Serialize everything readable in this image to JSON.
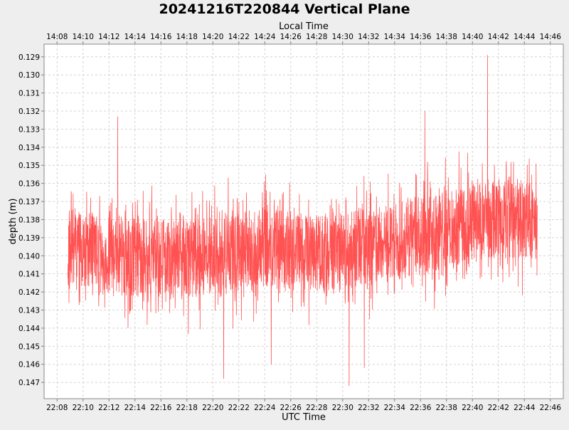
{
  "chart_data": {
    "type": "line",
    "title": "20241216T220844 Vertical Plane",
    "top_axis": {
      "label": "Local Time",
      "ticks": [
        "14:08",
        "14:10",
        "14:12",
        "14:14",
        "14:16",
        "14:18",
        "14:20",
        "14:22",
        "14:24",
        "14:26",
        "14:28",
        "14:30",
        "14:32",
        "14:34",
        "14:36",
        "14:38",
        "14:40",
        "14:42",
        "14:44",
        "14:46"
      ]
    },
    "xlabel": "UTC Time",
    "x_ticks": [
      "22:08",
      "22:10",
      "22:12",
      "22:14",
      "22:16",
      "22:18",
      "22:20",
      "22:22",
      "22:24",
      "22:26",
      "22:28",
      "22:30",
      "22:32",
      "22:34",
      "22:36",
      "22:38",
      "22:40",
      "22:42",
      "22:44",
      "22:46"
    ],
    "xlim": [
      "22:07:00",
      "22:47:00"
    ],
    "ylabel": "depth (m)",
    "y_ticks": [
      "0.129",
      "0.130",
      "0.131",
      "0.132",
      "0.133",
      "0.134",
      "0.135",
      "0.136",
      "0.137",
      "0.138",
      "0.139",
      "0.140",
      "0.141",
      "0.142",
      "0.143",
      "0.144",
      "0.145",
      "0.146",
      "0.147"
    ],
    "ylim": [
      0.1283,
      0.1479
    ],
    "y_inverted": true,
    "grid": true,
    "series_color": "#ff4040",
    "series": [
      {
        "x_start": "22:08:50",
        "x_end": "22:45:00",
        "mean_depth_trend": [
          {
            "x": "22:09:00",
            "y": 0.1395
          },
          {
            "x": "22:13:00",
            "y": 0.14
          },
          {
            "x": "22:18:00",
            "y": 0.1403
          },
          {
            "x": "22:24:00",
            "y": 0.1395
          },
          {
            "x": "22:29:00",
            "y": 0.14
          },
          {
            "x": "22:33:00",
            "y": 0.1393
          },
          {
            "x": "22:37:00",
            "y": 0.1388
          },
          {
            "x": "22:41:00",
            "y": 0.138
          },
          {
            "x": "22:45:00",
            "y": 0.138
          }
        ],
        "min_depth": 0.1289,
        "max_depth": 0.1472,
        "extremes": [
          {
            "x": "22:41:10",
            "y": 0.1289
          },
          {
            "x": "22:36:20",
            "y": 0.132
          },
          {
            "x": "22:12:40",
            "y": 0.1323
          },
          {
            "x": "22:20:50",
            "y": 0.1468
          },
          {
            "x": "22:30:30",
            "y": 0.1472
          },
          {
            "x": "22:31:40",
            "y": 0.1462
          },
          {
            "x": "22:24:30",
            "y": 0.146
          }
        ]
      }
    ]
  }
}
